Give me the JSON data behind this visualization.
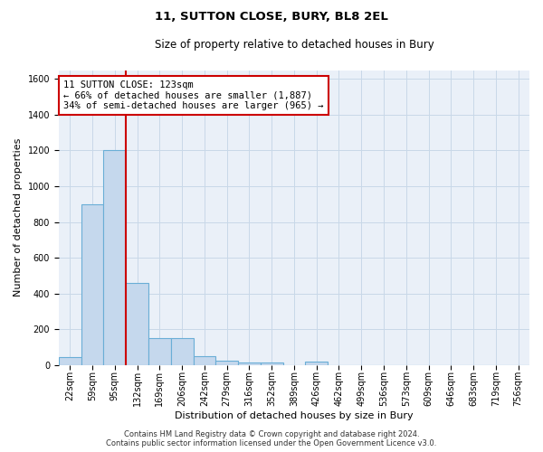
{
  "title_line1": "11, SUTTON CLOSE, BURY, BL8 2EL",
  "title_line2": "Size of property relative to detached houses in Bury",
  "xlabel": "Distribution of detached houses by size in Bury",
  "ylabel": "Number of detached properties",
  "footer_line1": "Contains HM Land Registry data © Crown copyright and database right 2024.",
  "footer_line2": "Contains public sector information licensed under the Open Government Licence v3.0.",
  "bar_labels": [
    "22sqm",
    "59sqm",
    "95sqm",
    "132sqm",
    "169sqm",
    "206sqm",
    "242sqm",
    "279sqm",
    "316sqm",
    "352sqm",
    "389sqm",
    "426sqm",
    "462sqm",
    "499sqm",
    "536sqm",
    "573sqm",
    "609sqm",
    "646sqm",
    "683sqm",
    "719sqm",
    "756sqm"
  ],
  "bar_values": [
    45,
    900,
    1200,
    460,
    150,
    150,
    50,
    25,
    15,
    15,
    0,
    20,
    0,
    0,
    0,
    0,
    0,
    0,
    0,
    0,
    0
  ],
  "bar_color": "#c5d8ed",
  "bar_edge_color": "#6aaed6",
  "grid_color": "#c8d8e8",
  "bg_color": "#eaf0f8",
  "ylim": [
    0,
    1650
  ],
  "yticks": [
    0,
    200,
    400,
    600,
    800,
    1000,
    1200,
    1400,
    1600
  ],
  "annotation_line1": "11 SUTTON CLOSE: 123sqm",
  "annotation_line2": "← 66% of detached houses are smaller (1,887)",
  "annotation_line3": "34% of semi-detached houses are larger (965) →",
  "vline_bin_index": 2,
  "vline_color": "#cc0000",
  "box_color": "#cc0000",
  "title_fontsize": 9.5,
  "subtitle_fontsize": 8.5,
  "ylabel_fontsize": 8,
  "xlabel_fontsize": 8,
  "tick_fontsize": 7,
  "annotation_fontsize": 7.5,
  "footer_fontsize": 6
}
